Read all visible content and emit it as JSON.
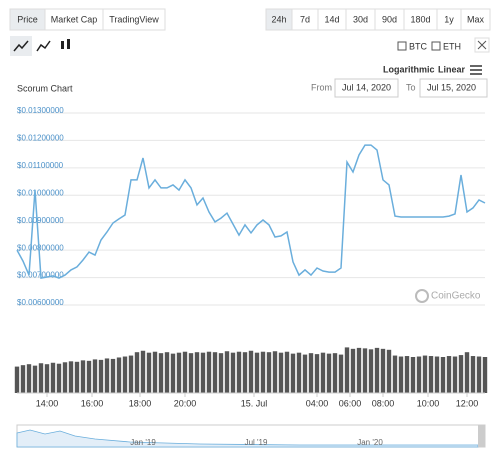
{
  "tabs": [
    "Price",
    "Market Cap",
    "TradingView"
  ],
  "ranges": [
    "24h",
    "7d",
    "14d",
    "30d",
    "90d",
    "180d",
    "1y",
    "Max"
  ],
  "compare": [
    "BTC",
    "ETH"
  ],
  "scale_options": [
    "Logarithmic",
    "Linear"
  ],
  "chart_data": {
    "type": "line",
    "title": "Scorum Chart",
    "from_label": "From",
    "from": "Jul 14, 2020",
    "to_label": "To",
    "to": "Jul 15, 2020",
    "watermark": "CoinGecko",
    "color": "#6aaedc",
    "values": [
      0.008,
      0.0076,
      0.00709,
      0.01019,
      0.00698,
      0.00702,
      0.00706,
      0.00698,
      0.00709,
      0.00728,
      0.00739,
      0.00764,
      0.00793,
      0.00782,
      0.00837,
      0.00866,
      0.00899,
      0.00914,
      0.00928,
      0.01056,
      0.01056,
      0.01136,
      0.01027,
      0.01056,
      0.01027,
      0.01027,
      0.01038,
      0.01019,
      0.01056,
      0.01027,
      0.00965,
      0.0099,
      0.00939,
      0.00903,
      0.00917,
      0.00935,
      0.00895,
      0.00855,
      0.00892,
      0.00863,
      0.00892,
      0.0091,
      0.00892,
      0.00848,
      0.00852,
      0.00866,
      0.00757,
      0.00709,
      0.00728,
      0.00709,
      0.00735,
      0.00724,
      0.0072,
      0.0072,
      0.00735,
      0.01121,
      0.01085,
      0.01147,
      0.01183,
      0.01183,
      0.01165,
      0.01056,
      0.01038,
      0.00924,
      0.00921,
      0.00921,
      0.00921,
      0.00921,
      0.00921,
      0.00921,
      0.00921,
      0.00921,
      0.00924,
      0.00932,
      0.01074,
      0.00939,
      0.00954,
      0.00983,
      0.00972
    ],
    "volume": [
      55,
      58,
      60,
      57,
      62,
      60,
      63,
      61,
      64,
      66,
      65,
      68,
      67,
      70,
      69,
      72,
      71,
      74,
      76,
      78,
      85,
      88,
      84,
      86,
      83,
      85,
      82,
      84,
      86,
      83,
      85,
      84,
      86,
      85,
      83,
      87,
      84,
      86,
      85,
      88,
      84,
      86,
      85,
      87,
      84,
      86,
      82,
      84,
      80,
      83,
      81,
      84,
      82,
      83,
      80,
      95,
      92,
      94,
      93,
      91,
      94,
      92,
      90,
      78,
      76,
      77,
      75,
      76,
      78,
      77,
      76,
      75,
      77,
      76,
      79,
      85,
      77,
      76,
      75
    ],
    "volume_ylim": [
      0,
      100
    ],
    "volume_color": "#555555",
    "xlim": [
      0,
      78
    ],
    "xticks": [
      {
        "value": 5,
        "label": "14:00"
      },
      {
        "value": 12.5,
        "label": "16:00"
      },
      {
        "value": 20.5,
        "label": "18:00"
      },
      {
        "value": 28,
        "label": "20:00"
      },
      {
        "value": 39.5,
        "label": "15. Jul"
      },
      {
        "value": 50,
        "label": "04:00"
      },
      {
        "value": 55.5,
        "label": "06:00"
      },
      {
        "value": 61,
        "label": "08:00"
      },
      {
        "value": 68.5,
        "label": "10:00"
      },
      {
        "value": 75,
        "label": "12:00"
      }
    ],
    "ylim": [
      0.006,
      0.013
    ],
    "yticks": [
      {
        "value": 0.013,
        "label": "$0.01300000"
      },
      {
        "value": 0.012,
        "label": "$0.01200000"
      },
      {
        "value": 0.011,
        "label": "$0.01100000"
      },
      {
        "value": 0.01,
        "label": "$0.01000000"
      },
      {
        "value": 0.009,
        "label": "$0.00900000"
      },
      {
        "value": 0.008,
        "label": "$0.00800000"
      },
      {
        "value": 0.007,
        "label": "$0.00700000"
      },
      {
        "value": 0.006,
        "label": "$0.00600000"
      }
    ],
    "grid": true,
    "navigator_labels": [
      "Jan '19",
      "Jul '19",
      "Jan '20"
    ]
  }
}
